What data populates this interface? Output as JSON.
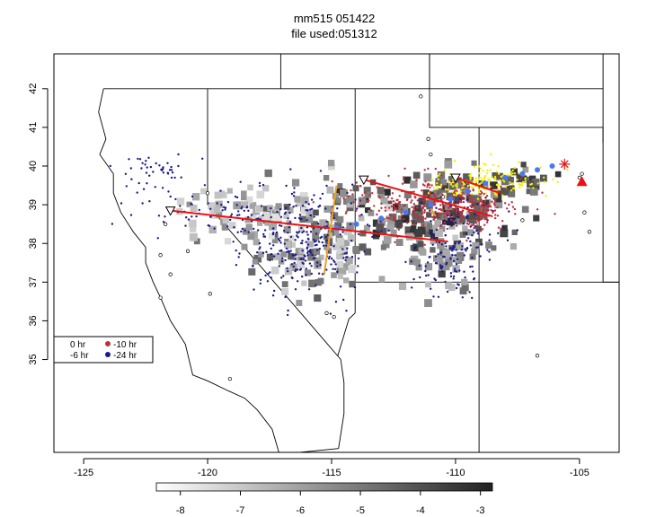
{
  "title_line1": "mm515 051422",
  "title_line2": "file used:051312",
  "chart_data": {
    "type": "scatter",
    "subtype": "trajectory-map",
    "xlim": [
      -126.2,
      -103.4
    ],
    "ylim": [
      32.6,
      42.9
    ],
    "x_ticks": [
      -125,
      -120,
      -115,
      -110,
      -105
    ],
    "x_tick_labels": [
      "-125",
      "-120",
      "-115",
      "-110",
      "-105"
    ],
    "y_ticks": [
      35,
      36,
      37,
      38,
      39,
      40,
      41,
      42
    ],
    "y_tick_labels": [
      "35",
      "36",
      "37",
      "38",
      "39",
      "40",
      "41",
      "42"
    ],
    "grid": false,
    "legend": {
      "placement": "left",
      "entries": [
        {
          "label": "0 hr",
          "color": "#ffffff"
        },
        {
          "label": "-10 hr",
          "color": "#c0303c"
        },
        {
          "label": "-6 hr",
          "color": "#ffffff"
        },
        {
          "label": "-24 hr",
          "color": "#1a1a8c"
        }
      ]
    },
    "colorbar": {
      "placement": "bottom",
      "range": [
        -8.4,
        -2.8
      ],
      "ticks": [
        -8,
        -7,
        -6,
        -5,
        -4,
        -3
      ],
      "tick_labels": [
        "-8",
        "-7",
        "-6",
        "-5",
        "-4",
        "-3"
      ]
    },
    "colors": {
      "hr0": "#f2f200",
      "hr10": "#c0303c",
      "hr24": "#1a1a8c",
      "path": "#4a78f0",
      "trend": "#ee1111",
      "cross": "#f0a020",
      "source_marker": "#ee1111"
    },
    "density_clusters": [
      {
        "cx": -111.2,
        "cy": 38.6,
        "sx": 1.6,
        "sy": 0.55,
        "n": 140,
        "lo": -6.5,
        "hi": -2.9
      },
      {
        "cx": -115.8,
        "cy": 38.2,
        "sx": 1.5,
        "sy": 0.75,
        "n": 150,
        "lo": -7.5,
        "hi": -4.2
      },
      {
        "cx": -109.5,
        "cy": 39.3,
        "sx": 1.1,
        "sy": 0.4,
        "n": 60,
        "lo": -6.0,
        "hi": -2.9
      },
      {
        "cx": -118.8,
        "cy": 38.8,
        "sx": 1.4,
        "sy": 0.3,
        "n": 50,
        "lo": -7.8,
        "hi": -5.5
      },
      {
        "cx": -110.3,
        "cy": 37.6,
        "sx": 0.7,
        "sy": 0.5,
        "n": 35,
        "lo": -7.0,
        "hi": -4.5
      },
      {
        "cx": -107.3,
        "cy": 39.6,
        "sx": 0.8,
        "sy": 0.15,
        "n": 20,
        "lo": -5.5,
        "hi": -3.0
      }
    ],
    "particle_clusters": [
      {
        "color_key": "hr24",
        "cx": -116.2,
        "cy": 38.0,
        "sx": 1.4,
        "sy": 0.65,
        "n": 280
      },
      {
        "color_key": "hr24",
        "cx": -119.5,
        "cy": 38.9,
        "sx": 1.5,
        "sy": 0.35,
        "n": 70
      },
      {
        "color_key": "hr24",
        "cx": -122.4,
        "cy": 39.9,
        "sx": 0.7,
        "sy": 0.3,
        "n": 45
      },
      {
        "color_key": "hr24",
        "cx": -110.3,
        "cy": 37.6,
        "sx": 0.7,
        "sy": 0.45,
        "n": 110
      },
      {
        "color_key": "hr24",
        "cx": -109.4,
        "cy": 38.6,
        "sx": 0.8,
        "sy": 0.35,
        "n": 60
      },
      {
        "color_key": "hr10",
        "cx": -111.0,
        "cy": 39.0,
        "sx": 1.5,
        "sy": 0.35,
        "n": 280
      },
      {
        "color_key": "hr10",
        "cx": -109.2,
        "cy": 38.9,
        "sx": 0.6,
        "sy": 0.3,
        "n": 100
      },
      {
        "color_key": "hr0",
        "cx": -108.8,
        "cy": 39.6,
        "sx": 1.0,
        "sy": 0.2,
        "n": 160
      }
    ],
    "trajectory_path": {
      "x": [
        -114.8,
        -114.0,
        -113.0,
        -112.0,
        -111.0,
        -110.2,
        -109.5,
        -108.8,
        -108.0,
        -107.3,
        -106.7,
        -106.1
      ],
      "y": [
        38.4,
        38.5,
        38.65,
        38.8,
        39.0,
        39.15,
        39.35,
        39.55,
        39.7,
        39.8,
        39.9,
        40.0
      ]
    },
    "trend_lines": [
      {
        "x": [
          -121.5,
          -110.3
        ],
        "y": [
          38.85,
          38.05
        ]
      },
      {
        "x": [
          -113.7,
          -108.5
        ],
        "y": [
          39.65,
          38.7
        ]
      },
      {
        "x": [
          -110.0,
          -108.2
        ],
        "y": [
          39.7,
          39.3
        ]
      }
    ],
    "cross_lines": [
      {
        "x": [
          -114.8,
          -115.3
        ],
        "y": [
          39.5,
          37.2
        ]
      },
      {
        "x": [
          -111.0,
          -110.8
        ],
        "y": [
          38.9,
          38.7
        ]
      }
    ],
    "open_triangles": [
      {
        "x": -121.5,
        "y": 38.85
      },
      {
        "x": -113.7,
        "y": 39.65
      },
      {
        "x": -110.0,
        "y": 39.7
      }
    ],
    "source_star": {
      "x": -105.6,
      "y": 40.05
    },
    "source_triangle": {
      "x": -104.9,
      "y": 39.6
    },
    "stations": [
      [
        -121.7,
        38.5
      ],
      [
        -120.8,
        37.8
      ],
      [
        -120.0,
        39.3
      ],
      [
        -119.9,
        36.7
      ],
      [
        -121.9,
        37.7
      ],
      [
        -121.5,
        37.2
      ],
      [
        -115.2,
        36.2
      ],
      [
        -111.4,
        41.8
      ],
      [
        -111.0,
        40.3
      ],
      [
        -111.1,
        40.7
      ],
      [
        -110.5,
        39.2
      ],
      [
        -107.3,
        38.6
      ],
      [
        -106.7,
        35.1
      ],
      [
        -104.8,
        38.8
      ],
      [
        -104.6,
        38.3
      ],
      [
        -104.9,
        39.8
      ],
      [
        -105.0,
        39.7
      ],
      [
        -119.1,
        34.5
      ],
      [
        -114.9,
        36.1
      ],
      [
        -121.9,
        36.6
      ]
    ],
    "state_lines": [
      [
        [
          -124.2,
          42.0
        ],
        [
          -120.0,
          42.0
        ],
        [
          -117.0,
          42.0
        ],
        [
          -111.05,
          42.0
        ],
        [
          -104.05,
          42.0
        ]
      ],
      [
        [
          -120.0,
          42.0
        ],
        [
          -120.0,
          39.0
        ],
        [
          -114.63,
          35.0
        ]
      ],
      [
        [
          -114.05,
          42.0
        ],
        [
          -114.05,
          36.2
        ]
      ],
      [
        [
          -111.05,
          42.0
        ],
        [
          -111.05,
          41.0
        ],
        [
          -104.05,
          41.0
        ],
        [
          -104.05,
          40.6
        ]
      ],
      [
        [
          -114.05,
          37.0
        ],
        [
          -103.0,
          37.0
        ]
      ],
      [
        [
          -109.05,
          41.0
        ],
        [
          -109.05,
          31.3
        ]
      ],
      [
        [
          -104.05,
          41.0
        ],
        [
          -104.05,
          37.0
        ],
        [
          -103.0,
          37.0
        ]
      ],
      [
        [
          -114.05,
          36.2
        ],
        [
          -114.3,
          36.05
        ],
        [
          -114.75,
          35.1
        ]
      ],
      [
        [
          -114.72,
          32.7
        ],
        [
          -114.5,
          33.6
        ],
        [
          -114.5,
          34.4
        ],
        [
          -114.63,
          35.0
        ]
      ],
      [
        [
          -111.05,
          44.5
        ],
        [
          -111.05,
          42.0
        ]
      ],
      [
        [
          -117.05,
          44.5
        ],
        [
          -117.05,
          42.0
        ]
      ],
      [
        [
          -116.0,
          44.3
        ],
        [
          -116.5,
          43.8
        ],
        [
          -117.05,
          43.2
        ]
      ],
      [
        [
          -111.05,
          42.0
        ],
        [
          -111.05,
          45.0
        ],
        [
          -104.05,
          45.0
        ],
        [
          -104.05,
          41.0
        ]
      ]
    ],
    "coastline": [
      [
        -124.2,
        42.0
      ],
      [
        -124.4,
        41.4
      ],
      [
        -124.1,
        40.7
      ],
      [
        -124.35,
        40.3
      ],
      [
        -123.8,
        39.8
      ],
      [
        -123.8,
        39.3
      ],
      [
        -123.5,
        38.8
      ],
      [
        -123.0,
        38.3
      ],
      [
        -122.5,
        37.9
      ],
      [
        -122.5,
        37.5
      ],
      [
        -122.2,
        37.0
      ],
      [
        -121.9,
        36.6
      ],
      [
        -121.5,
        36.0
      ],
      [
        -120.9,
        35.4
      ],
      [
        -120.6,
        34.6
      ],
      [
        -120.0,
        34.45
      ],
      [
        -119.2,
        34.2
      ],
      [
        -118.5,
        34.0
      ],
      [
        -118.0,
        33.7
      ],
      [
        -117.4,
        33.2
      ],
      [
        -117.1,
        32.55
      ]
    ],
    "mexico_border": [
      [
        -117.1,
        32.55
      ],
      [
        -114.72,
        32.7
      ]
    ]
  }
}
